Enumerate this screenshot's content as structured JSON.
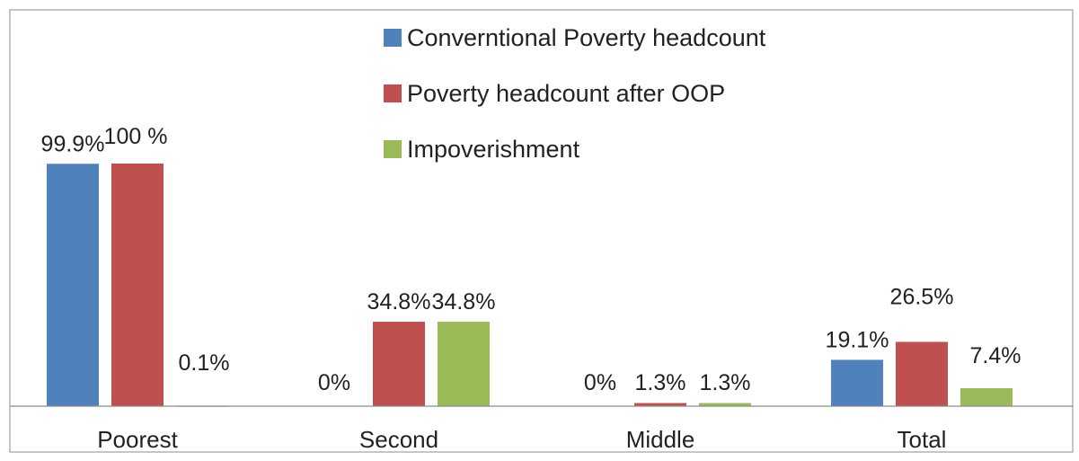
{
  "chart_data": {
    "type": "bar",
    "title": "",
    "xlabel": "",
    "ylabel": "",
    "ylim": [
      0,
      100
    ],
    "grid": false,
    "legend_position": "top-center",
    "categories": [
      "Poorest",
      "Second",
      "Middle",
      "Total"
    ],
    "series": [
      {
        "name": "Converntional Poverty headcount",
        "color": "#4f81bd",
        "values": [
          99.9,
          0,
          0,
          19.1
        ],
        "labels": [
          "99.9%",
          "0%",
          "0%",
          "19.1%"
        ]
      },
      {
        "name": "Poverty headcount after OOP",
        "color": "#c0504d",
        "values": [
          100,
          34.8,
          1.3,
          26.5
        ],
        "labels": [
          "100 %",
          "34.8%",
          "1.3%",
          "26.5%"
        ]
      },
      {
        "name": "Impoverishment",
        "color": "#9bbb59",
        "values": [
          0.1,
          34.8,
          1.3,
          7.4
        ],
        "labels": [
          "0.1%",
          "34.8%",
          "1.3%",
          "7.4%"
        ]
      }
    ]
  }
}
